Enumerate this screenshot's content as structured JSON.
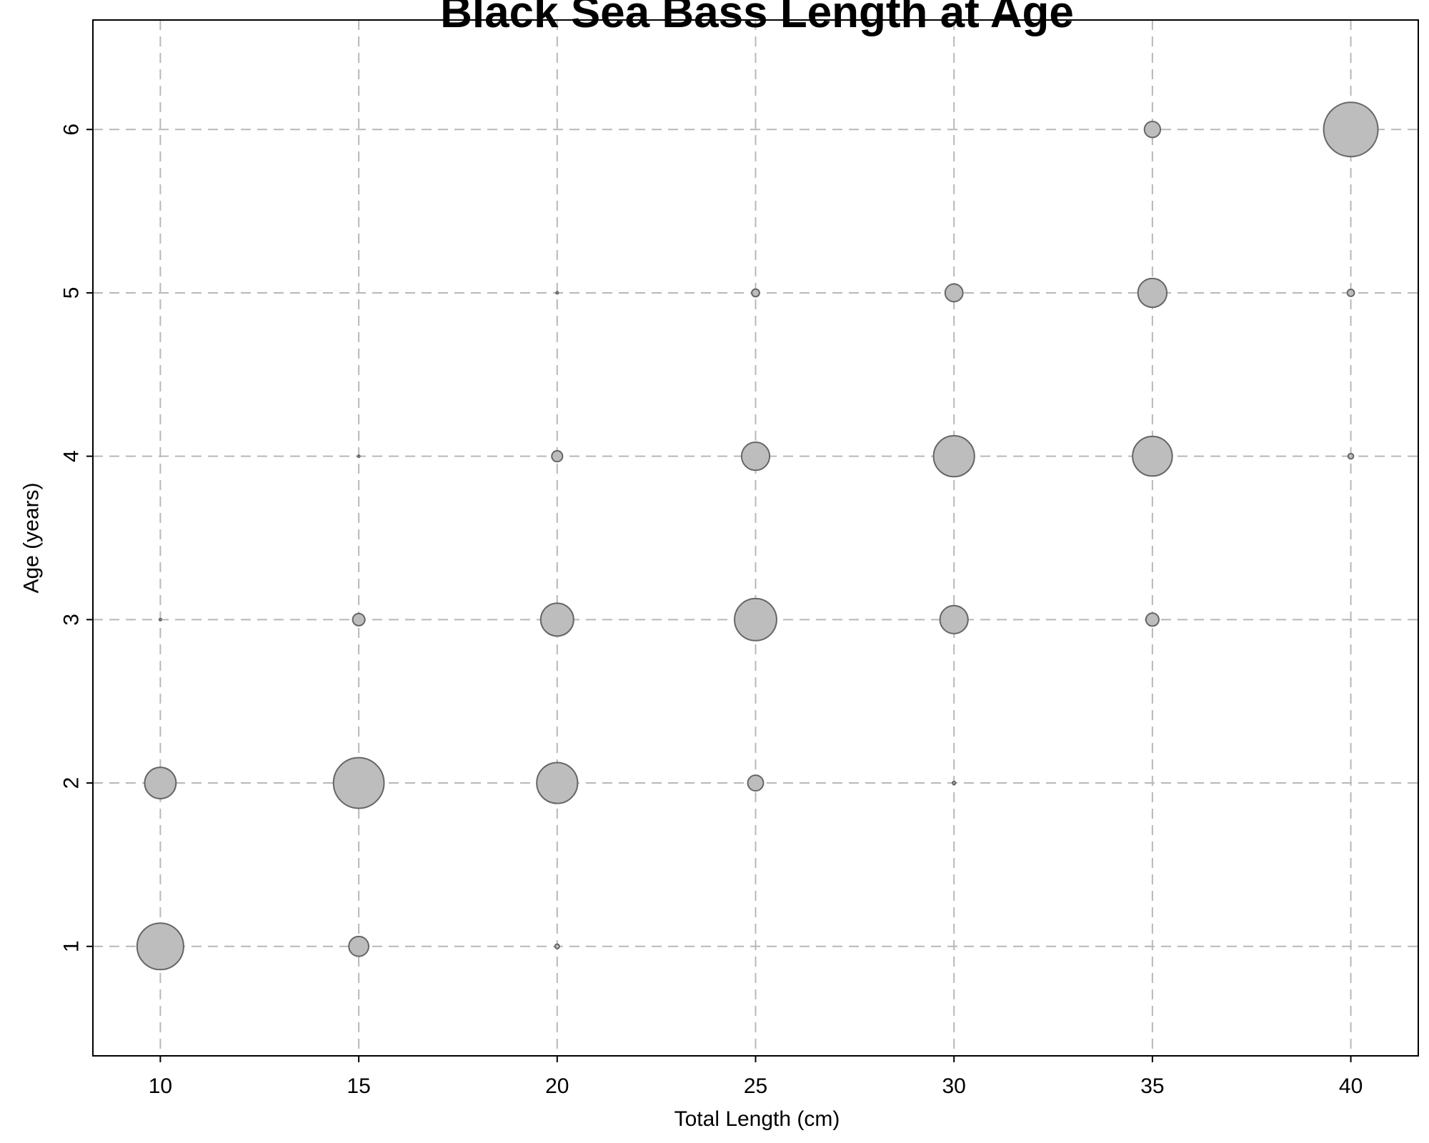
{
  "chart_data": {
    "type": "scatter",
    "title": "Black Sea Bass Length at Age",
    "xlabel": "Total Length (cm)",
    "ylabel": "Age (years)",
    "xlim": [
      8.3,
      41.7
    ],
    "ylim": [
      0.33,
      6.67
    ],
    "x_ticks": [
      10,
      15,
      20,
      25,
      30,
      35,
      40
    ],
    "y_ticks": [
      1,
      2,
      3,
      4,
      5,
      6
    ],
    "grid": true,
    "marker_color": "#bdbdbd",
    "marker_edge_color": "#666666",
    "size_max": 30,
    "points": [
      {
        "x": 10,
        "y": 1,
        "size": 22
      },
      {
        "x": 15,
        "y": 1,
        "size": 4
      },
      {
        "x": 20,
        "y": 1,
        "size": 0.2
      },
      {
        "x": 10,
        "y": 2,
        "size": 10
      },
      {
        "x": 15,
        "y": 2,
        "size": 26
      },
      {
        "x": 20,
        "y": 2,
        "size": 17
      },
      {
        "x": 25,
        "y": 2,
        "size": 2.5
      },
      {
        "x": 30,
        "y": 2,
        "size": 0.1
      },
      {
        "x": 10,
        "y": 3,
        "size": 0.05
      },
      {
        "x": 15,
        "y": 3,
        "size": 1.5
      },
      {
        "x": 20,
        "y": 3,
        "size": 11
      },
      {
        "x": 25,
        "y": 3,
        "size": 18
      },
      {
        "x": 30,
        "y": 3,
        "size": 8
      },
      {
        "x": 35,
        "y": 3,
        "size": 1.7
      },
      {
        "x": 15,
        "y": 4,
        "size": 0.05
      },
      {
        "x": 20,
        "y": 4,
        "size": 1.2
      },
      {
        "x": 25,
        "y": 4,
        "size": 8
      },
      {
        "x": 30,
        "y": 4,
        "size": 17
      },
      {
        "x": 35,
        "y": 4,
        "size": 16
      },
      {
        "x": 40,
        "y": 4,
        "size": 0.3
      },
      {
        "x": 20,
        "y": 5,
        "size": 0.05
      },
      {
        "x": 25,
        "y": 5,
        "size": 0.6
      },
      {
        "x": 30,
        "y": 5,
        "size": 3.2
      },
      {
        "x": 35,
        "y": 5,
        "size": 8.5
      },
      {
        "x": 40,
        "y": 5,
        "size": 0.5
      },
      {
        "x": 35,
        "y": 6,
        "size": 2.6
      },
      {
        "x": 40,
        "y": 6,
        "size": 30
      }
    ]
  }
}
